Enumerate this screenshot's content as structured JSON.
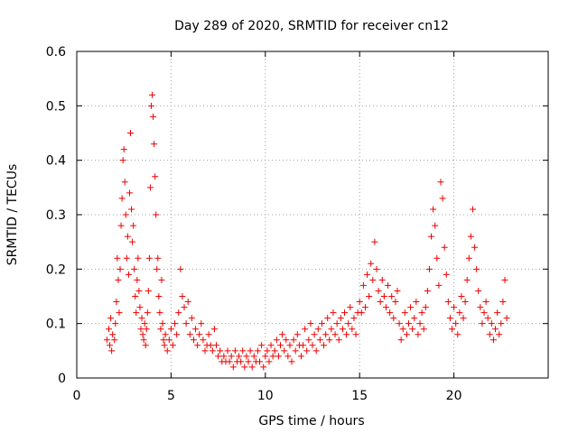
{
  "chart_data": {
    "type": "scatter",
    "title": "Day 289 of 2020, SRMTID for receiver cn12",
    "xlabel": "GPS time / hours",
    "ylabel": "SRMTID / TECUs",
    "xlim": [
      0,
      25
    ],
    "ylim": [
      0,
      0.6
    ],
    "xticks": [
      0,
      5,
      10,
      15,
      20
    ],
    "yticks": [
      0,
      0.1,
      0.2,
      0.3,
      0.4,
      0.5,
      0.6
    ],
    "xtick_labels": [
      "0",
      "5",
      "10",
      "15",
      "20"
    ],
    "ytick_labels": [
      "0",
      "0.1",
      "0.2",
      "0.3",
      "0.4",
      "0.5",
      "0.6"
    ],
    "grid": true,
    "marker": "+",
    "series": [
      {
        "name": "SRMTID",
        "color": "#ee0000",
        "points": [
          [
            1.6,
            0.07
          ],
          [
            1.7,
            0.09
          ],
          [
            1.75,
            0.06
          ],
          [
            1.8,
            0.11
          ],
          [
            1.85,
            0.05
          ],
          [
            1.9,
            0.08
          ],
          [
            2.0,
            0.07
          ],
          [
            2.05,
            0.1
          ],
          [
            2.1,
            0.14
          ],
          [
            2.15,
            0.22
          ],
          [
            2.2,
            0.18
          ],
          [
            2.25,
            0.12
          ],
          [
            2.3,
            0.2
          ],
          [
            2.35,
            0.28
          ],
          [
            2.4,
            0.33
          ],
          [
            2.45,
            0.4
          ],
          [
            2.5,
            0.42
          ],
          [
            2.55,
            0.36
          ],
          [
            2.6,
            0.3
          ],
          [
            2.65,
            0.22
          ],
          [
            2.7,
            0.26
          ],
          [
            2.75,
            0.19
          ],
          [
            2.8,
            0.34
          ],
          [
            2.85,
            0.45
          ],
          [
            2.9,
            0.31
          ],
          [
            2.95,
            0.25
          ],
          [
            3.0,
            0.28
          ],
          [
            3.05,
            0.2
          ],
          [
            3.1,
            0.15
          ],
          [
            3.15,
            0.12
          ],
          [
            3.2,
            0.18
          ],
          [
            3.25,
            0.22
          ],
          [
            3.3,
            0.16
          ],
          [
            3.35,
            0.13
          ],
          [
            3.4,
            0.09
          ],
          [
            3.45,
            0.11
          ],
          [
            3.5,
            0.08
          ],
          [
            3.55,
            0.07
          ],
          [
            3.6,
            0.1
          ],
          [
            3.65,
            0.06
          ],
          [
            3.7,
            0.09
          ],
          [
            3.75,
            0.12
          ],
          [
            3.8,
            0.16
          ],
          [
            3.85,
            0.22
          ],
          [
            3.9,
            0.35
          ],
          [
            3.95,
            0.5
          ],
          [
            4.0,
            0.52
          ],
          [
            4.05,
            0.48
          ],
          [
            4.1,
            0.43
          ],
          [
            4.15,
            0.37
          ],
          [
            4.2,
            0.3
          ],
          [
            4.25,
            0.2
          ],
          [
            4.3,
            0.22
          ],
          [
            4.35,
            0.15
          ],
          [
            4.4,
            0.12
          ],
          [
            4.45,
            0.09
          ],
          [
            4.5,
            0.18
          ],
          [
            4.55,
            0.1
          ],
          [
            4.6,
            0.07
          ],
          [
            4.65,
            0.06
          ],
          [
            4.7,
            0.08
          ],
          [
            4.8,
            0.05
          ],
          [
            4.9,
            0.07
          ],
          [
            5.0,
            0.09
          ],
          [
            5.1,
            0.06
          ],
          [
            5.2,
            0.1
          ],
          [
            5.3,
            0.08
          ],
          [
            5.4,
            0.12
          ],
          [
            5.5,
            0.2
          ],
          [
            5.6,
            0.15
          ],
          [
            5.7,
            0.13
          ],
          [
            5.8,
            0.1
          ],
          [
            5.9,
            0.14
          ],
          [
            6.0,
            0.08
          ],
          [
            6.1,
            0.11
          ],
          [
            6.2,
            0.07
          ],
          [
            6.3,
            0.09
          ],
          [
            6.4,
            0.06
          ],
          [
            6.5,
            0.08
          ],
          [
            6.6,
            0.1
          ],
          [
            6.7,
            0.07
          ],
          [
            6.8,
            0.05
          ],
          [
            6.9,
            0.06
          ],
          [
            7.0,
            0.08
          ],
          [
            7.1,
            0.06
          ],
          [
            7.2,
            0.05
          ],
          [
            7.3,
            0.09
          ],
          [
            7.4,
            0.06
          ],
          [
            7.5,
            0.04
          ],
          [
            7.6,
            0.05
          ],
          [
            7.7,
            0.03
          ],
          [
            7.8,
            0.04
          ],
          [
            7.9,
            0.03
          ],
          [
            8.0,
            0.05
          ],
          [
            8.1,
            0.03
          ],
          [
            8.2,
            0.04
          ],
          [
            8.3,
            0.02
          ],
          [
            8.4,
            0.05
          ],
          [
            8.5,
            0.03
          ],
          [
            8.6,
            0.04
          ],
          [
            8.7,
            0.03
          ],
          [
            8.8,
            0.05
          ],
          [
            8.9,
            0.02
          ],
          [
            9.0,
            0.04
          ],
          [
            9.1,
            0.03
          ],
          [
            9.2,
            0.05
          ],
          [
            9.3,
            0.02
          ],
          [
            9.4,
            0.04
          ],
          [
            9.5,
            0.03
          ],
          [
            9.6,
            0.05
          ],
          [
            9.7,
            0.03
          ],
          [
            9.8,
            0.06
          ],
          [
            9.9,
            0.02
          ],
          [
            10.0,
            0.04
          ],
          [
            10.1,
            0.05
          ],
          [
            10.2,
            0.03
          ],
          [
            10.3,
            0.06
          ],
          [
            10.4,
            0.04
          ],
          [
            10.5,
            0.05
          ],
          [
            10.6,
            0.07
          ],
          [
            10.7,
            0.04
          ],
          [
            10.8,
            0.06
          ],
          [
            10.9,
            0.08
          ],
          [
            11.0,
            0.05
          ],
          [
            11.1,
            0.07
          ],
          [
            11.2,
            0.04
          ],
          [
            11.3,
            0.06
          ],
          [
            11.4,
            0.03
          ],
          [
            11.5,
            0.07
          ],
          [
            11.6,
            0.05
          ],
          [
            11.7,
            0.08
          ],
          [
            11.8,
            0.06
          ],
          [
            11.9,
            0.04
          ],
          [
            12.0,
            0.06
          ],
          [
            12.1,
            0.09
          ],
          [
            12.2,
            0.05
          ],
          [
            12.3,
            0.07
          ],
          [
            12.4,
            0.1
          ],
          [
            12.5,
            0.06
          ],
          [
            12.6,
            0.08
          ],
          [
            12.7,
            0.05
          ],
          [
            12.8,
            0.09
          ],
          [
            12.9,
            0.07
          ],
          [
            13.0,
            0.1
          ],
          [
            13.1,
            0.06
          ],
          [
            13.2,
            0.08
          ],
          [
            13.3,
            0.11
          ],
          [
            13.4,
            0.07
          ],
          [
            13.5,
            0.09
          ],
          [
            13.6,
            0.12
          ],
          [
            13.7,
            0.08
          ],
          [
            13.8,
            0.1
          ],
          [
            13.9,
            0.07
          ],
          [
            14.0,
            0.11
          ],
          [
            14.1,
            0.09
          ],
          [
            14.2,
            0.12
          ],
          [
            14.3,
            0.08
          ],
          [
            14.4,
            0.1
          ],
          [
            14.5,
            0.13
          ],
          [
            14.6,
            0.09
          ],
          [
            14.7,
            0.11
          ],
          [
            14.8,
            0.08
          ],
          [
            14.9,
            0.12
          ],
          [
            15.0,
            0.14
          ],
          [
            15.1,
            0.12
          ],
          [
            15.2,
            0.17
          ],
          [
            15.3,
            0.13
          ],
          [
            15.4,
            0.19
          ],
          [
            15.5,
            0.15
          ],
          [
            15.6,
            0.21
          ],
          [
            15.7,
            0.18
          ],
          [
            15.8,
            0.25
          ],
          [
            15.9,
            0.2
          ],
          [
            16.0,
            0.16
          ],
          [
            16.1,
            0.14
          ],
          [
            16.2,
            0.18
          ],
          [
            16.3,
            0.15
          ],
          [
            16.4,
            0.13
          ],
          [
            16.5,
            0.17
          ],
          [
            16.6,
            0.12
          ],
          [
            16.7,
            0.15
          ],
          [
            16.8,
            0.11
          ],
          [
            16.9,
            0.14
          ],
          [
            17.0,
            0.16
          ],
          [
            17.1,
            0.1
          ],
          [
            17.2,
            0.07
          ],
          [
            17.3,
            0.09
          ],
          [
            17.4,
            0.12
          ],
          [
            17.5,
            0.08
          ],
          [
            17.6,
            0.1
          ],
          [
            17.7,
            0.13
          ],
          [
            17.8,
            0.09
          ],
          [
            17.9,
            0.11
          ],
          [
            18.0,
            0.14
          ],
          [
            18.1,
            0.08
          ],
          [
            18.2,
            0.1
          ],
          [
            18.3,
            0.12
          ],
          [
            18.4,
            0.09
          ],
          [
            18.5,
            0.13
          ],
          [
            18.6,
            0.16
          ],
          [
            18.7,
            0.2
          ],
          [
            18.8,
            0.26
          ],
          [
            18.9,
            0.31
          ],
          [
            19.0,
            0.28
          ],
          [
            19.1,
            0.22
          ],
          [
            19.2,
            0.17
          ],
          [
            19.3,
            0.36
          ],
          [
            19.4,
            0.33
          ],
          [
            19.5,
            0.24
          ],
          [
            19.6,
            0.19
          ],
          [
            19.7,
            0.14
          ],
          [
            19.8,
            0.11
          ],
          [
            19.9,
            0.09
          ],
          [
            20.0,
            0.13
          ],
          [
            20.1,
            0.1
          ],
          [
            20.2,
            0.08
          ],
          [
            20.3,
            0.12
          ],
          [
            20.4,
            0.15
          ],
          [
            20.5,
            0.11
          ],
          [
            20.6,
            0.14
          ],
          [
            20.7,
            0.18
          ],
          [
            20.8,
            0.22
          ],
          [
            20.9,
            0.26
          ],
          [
            21.0,
            0.31
          ],
          [
            21.1,
            0.24
          ],
          [
            21.2,
            0.2
          ],
          [
            21.3,
            0.16
          ],
          [
            21.4,
            0.13
          ],
          [
            21.5,
            0.1
          ],
          [
            21.6,
            0.12
          ],
          [
            21.7,
            0.14
          ],
          [
            21.8,
            0.11
          ],
          [
            21.9,
            0.08
          ],
          [
            22.0,
            0.1
          ],
          [
            22.1,
            0.07
          ],
          [
            22.2,
            0.09
          ],
          [
            22.3,
            0.12
          ],
          [
            22.4,
            0.08
          ],
          [
            22.5,
            0.1
          ],
          [
            22.6,
            0.14
          ],
          [
            22.7,
            0.18
          ],
          [
            22.8,
            0.11
          ]
        ]
      }
    ]
  }
}
